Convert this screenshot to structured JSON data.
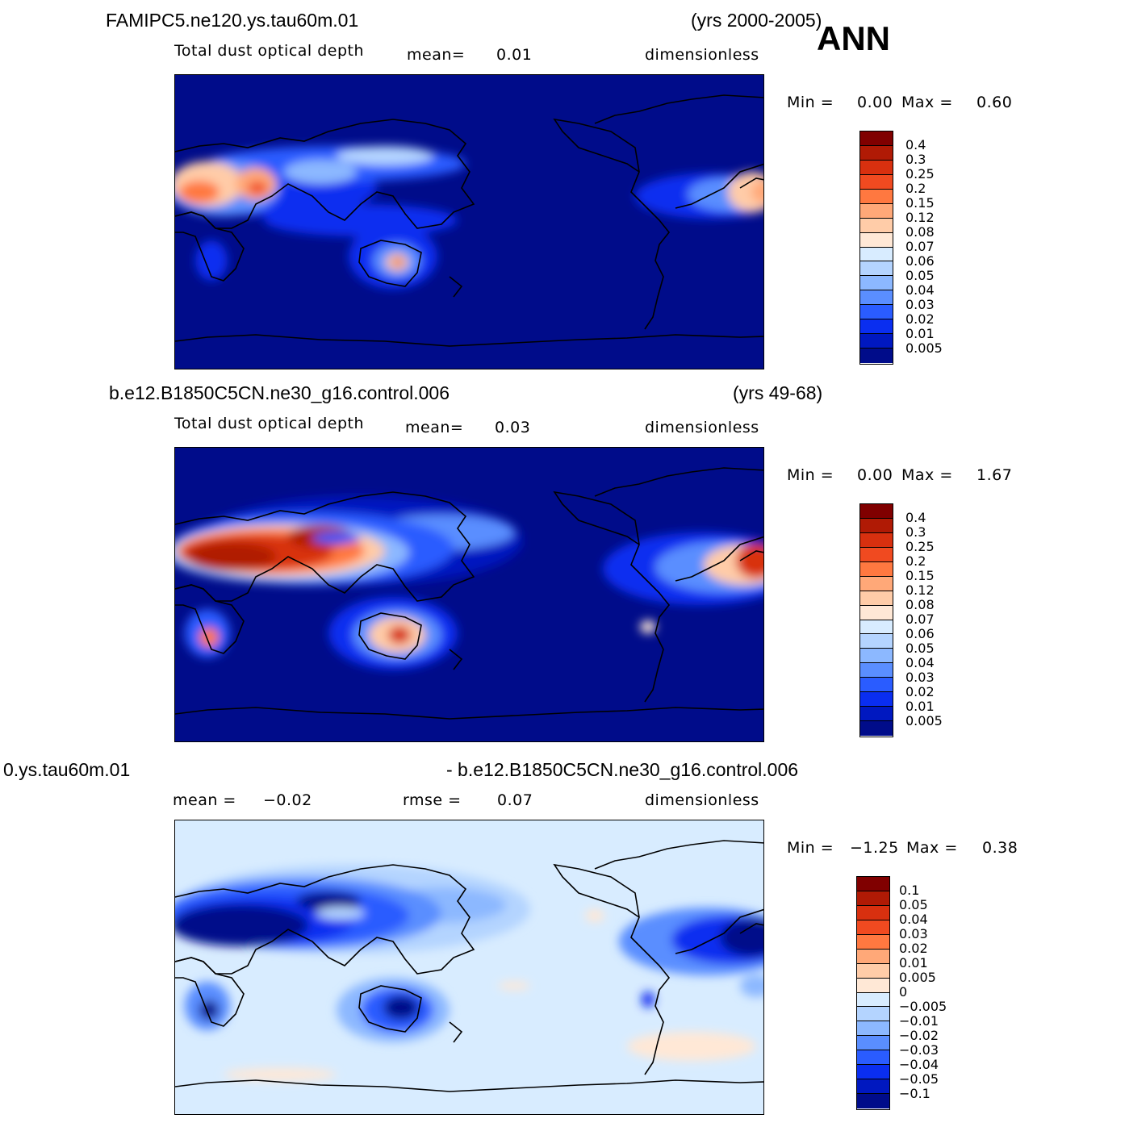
{
  "season": "ANN",
  "panels": [
    {
      "case": "FAMIPC5.ne120.ys.tau60m.01",
      "years": "(yrs 2000-2005)",
      "variable": "Total dust optical depth",
      "mean_label": "mean=",
      "mean_value": "0.01",
      "units": "dimensionless",
      "min_label": "Min =",
      "min_value": "0.00",
      "max_label": "Max =",
      "max_value": "0.60",
      "colorbar": {
        "labels": [
          "0.4",
          "0.3",
          "0.25",
          "0.2",
          "0.15",
          "0.12",
          "0.08",
          "0.07",
          "0.06",
          "0.05",
          "0.04",
          "0.03",
          "0.02",
          "0.01",
          "0.005"
        ],
        "colors": [
          "#800000",
          "#b01a05",
          "#d8300f",
          "#f04a20",
          "#ff7840",
          "#ffa878",
          "#ffcca8",
          "#ffe8d6",
          "#d8ecff",
          "#b4d4ff",
          "#8cb8ff",
          "#5a8eff",
          "#2a5cff",
          "#0a2ef0",
          "#0018c0",
          "#000c8a"
        ]
      }
    },
    {
      "case": "b.e12.B1850C5CN.ne30_g16.control.006",
      "years": "(yrs 49-68)",
      "variable": "Total dust optical depth",
      "mean_label": "mean=",
      "mean_value": "0.03",
      "units": "dimensionless",
      "min_label": "Min =",
      "min_value": "0.00",
      "max_label": "Max =",
      "max_value": "1.67",
      "colorbar": {
        "labels": [
          "0.4",
          "0.3",
          "0.25",
          "0.2",
          "0.15",
          "0.12",
          "0.08",
          "0.07",
          "0.06",
          "0.05",
          "0.04",
          "0.03",
          "0.02",
          "0.01",
          "0.005"
        ],
        "colors": [
          "#800000",
          "#b01a05",
          "#d8300f",
          "#f04a20",
          "#ff7840",
          "#ffa878",
          "#ffcca8",
          "#ffe8d6",
          "#d8ecff",
          "#b4d4ff",
          "#8cb8ff",
          "#5a8eff",
          "#2a5cff",
          "#0a2ef0",
          "#0018c0",
          "#000c8a"
        ]
      }
    },
    {
      "case_left": "0.ys.tau60m.01",
      "case_right": "- b.e12.B1850C5CN.ne30_g16.control.006",
      "mean_label": "mean =",
      "mean_value": "−0.02",
      "rmse_label": "rmse =",
      "rmse_value": "0.07",
      "units": "dimensionless",
      "min_label": "Min =",
      "min_value": "−1.25",
      "max_label": "Max =",
      "max_value": "0.38",
      "colorbar": {
        "labels": [
          "0.1",
          "0.05",
          "0.04",
          "0.03",
          "0.02",
          "0.01",
          "0.005",
          "0",
          "−0.005",
          "−0.01",
          "−0.02",
          "−0.03",
          "−0.04",
          "−0.05",
          "−0.1"
        ],
        "colors": [
          "#800000",
          "#b01a05",
          "#d8300f",
          "#f04a20",
          "#ff7840",
          "#ffa878",
          "#ffcca8",
          "#ffe8d6",
          "#d8ecff",
          "#b4d4ff",
          "#8cb8ff",
          "#5a8eff",
          "#2a5cff",
          "#0a2ef0",
          "#0018c0",
          "#000c8a"
        ]
      }
    }
  ]
}
